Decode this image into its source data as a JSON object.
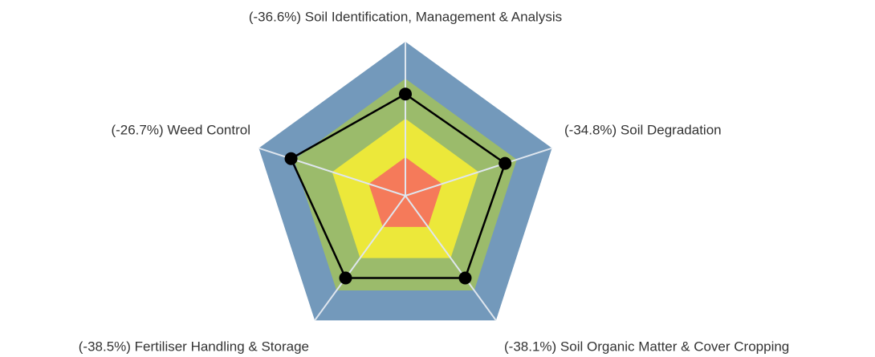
{
  "chart_data": {
    "type": "radar",
    "categories": [
      "(-36.6%) Soil Identification, Management & Analysis",
      "(-34.8%) Soil Degradation",
      "(-38.1%) Soil Organic Matter & Cover Cropping",
      "(-38.5%) Fertiliser Handling & Storage",
      "(-26.7%) Weed Control"
    ],
    "values": [
      66,
      68,
      66,
      66,
      78
    ],
    "color": "#000000",
    "rlim": [
      0,
      100
    ],
    "bands": [
      {
        "value": 100,
        "color": "#7399bb"
      },
      {
        "value": 76,
        "color": "#9bbb6b"
      },
      {
        "value": 50,
        "color": "#ece83a"
      },
      {
        "value": 25,
        "color": "#f57a5a"
      }
    ]
  }
}
